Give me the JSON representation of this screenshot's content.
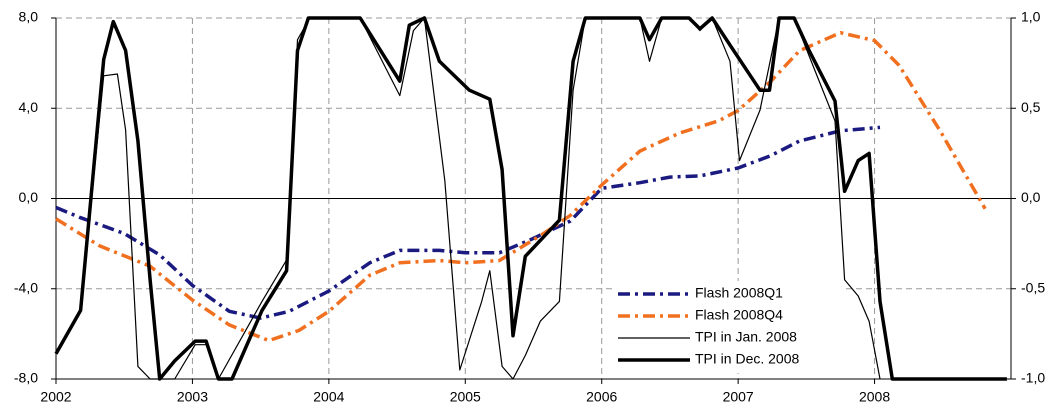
{
  "chart_data": {
    "type": "line",
    "xlim": [
      2002,
      2009
    ],
    "xticks": [
      2002,
      2003,
      2004,
      2005,
      2006,
      2007,
      2008
    ],
    "ylim": [
      -8,
      8
    ],
    "yticks": [
      {
        "value": 8,
        "label": "8,0"
      },
      {
        "value": 4,
        "label": "4,0"
      },
      {
        "value": 0,
        "label": "0,0"
      },
      {
        "value": -4,
        "label": "-4,0"
      },
      {
        "value": -8,
        "label": "-8,0"
      }
    ],
    "y2lim": [
      -1,
      1
    ],
    "y2ticks": [
      {
        "value": 1,
        "label": "1,0"
      },
      {
        "value": 0.5,
        "label": "0,5"
      },
      {
        "value": 0,
        "label": "0,0"
      },
      {
        "value": -0.5,
        "label": "-0,5"
      },
      {
        "value": -1,
        "label": "-1,0"
      }
    ],
    "grid": true,
    "legend": "lower right",
    "series": [
      {
        "name": "Flash 2008Q1",
        "color": "#1a1a80",
        "linestyle": "dashdot",
        "x": [
          2002.0,
          2002.18,
          2002.5,
          2002.76,
          2003.0,
          2003.27,
          2003.5,
          2003.71,
          2004.0,
          2004.3,
          2004.52,
          2004.81,
          2005.0,
          2005.25,
          2005.47,
          2005.77,
          2006.0,
          2006.28,
          2006.5,
          2006.72,
          2007.0,
          2007.24,
          2007.45,
          2007.75,
          2008.04
        ],
        "values": [
          -0.4,
          -0.85,
          -1.55,
          -2.5,
          -3.85,
          -5.0,
          -5.3,
          -5.0,
          -4.1,
          -2.85,
          -2.3,
          -2.3,
          -2.4,
          -2.4,
          -1.85,
          -1.0,
          0.45,
          0.7,
          0.95,
          1.0,
          1.35,
          1.9,
          2.55,
          3.0,
          3.15
        ]
      },
      {
        "name": "Flash 2008Q4",
        "color": "#f07020",
        "linestyle": "dashdot",
        "x": [
          2002.0,
          2002.32,
          2002.69,
          2003.0,
          2003.27,
          2003.56,
          2003.78,
          2004.0,
          2004.3,
          2004.52,
          2004.81,
          2005.0,
          2005.25,
          2005.55,
          2005.77,
          2006.0,
          2006.28,
          2006.57,
          2006.86,
          2007.0,
          2007.24,
          2007.45,
          2007.75,
          2008.0,
          2008.18,
          2008.48,
          2008.81
        ],
        "values": [
          -0.9,
          -2.1,
          -3.0,
          -4.5,
          -5.6,
          -6.3,
          -5.85,
          -5.0,
          -3.4,
          -2.85,
          -2.75,
          -2.85,
          -2.75,
          -1.65,
          -0.75,
          0.6,
          2.1,
          2.9,
          3.45,
          3.9,
          5.2,
          6.55,
          7.35,
          7.0,
          5.9,
          3.0,
          -0.45
        ]
      },
      {
        "name": "TPI in Jan. 2008",
        "color": "#000000",
        "linestyle": "solid",
        "axis": "y2",
        "x": [
          2002.0,
          2002.18,
          2002.35,
          2002.45,
          2002.51,
          2002.6,
          2002.69,
          2002.87,
          2003.02,
          2003.1,
          2003.19,
          2003.51,
          2003.69,
          2003.77,
          2003.86,
          2004.23,
          2004.52,
          2004.62,
          2004.7,
          2004.85,
          2004.96,
          2005.12,
          2005.18,
          2005.27,
          2005.35,
          2005.44,
          2005.55,
          2005.69,
          2005.79,
          2005.88,
          2006.28,
          2006.35,
          2006.44,
          2006.64,
          2006.72,
          2006.81,
          2006.94,
          2007.01,
          2007.16,
          2007.3,
          2007.41,
          2007.52,
          2007.71,
          2007.78,
          2007.88,
          2007.96,
          2008.04
        ],
        "values": [
          -0.86,
          -0.62,
          0.68,
          0.69,
          0.38,
          -0.93,
          -1.0,
          -1.0,
          -0.81,
          -0.81,
          -1.0,
          -0.57,
          -0.34,
          0.88,
          1.0,
          1.0,
          0.57,
          0.93,
          1.0,
          0.1,
          -0.95,
          -0.57,
          -0.4,
          -0.93,
          -1.0,
          -0.87,
          -0.68,
          -0.57,
          0.6,
          1.0,
          1.0,
          0.76,
          1.0,
          1.0,
          0.93,
          1.0,
          0.76,
          0.21,
          0.49,
          1.0,
          1.0,
          0.79,
          0.43,
          -0.45,
          -0.54,
          -0.68,
          -1.0
        ]
      },
      {
        "name": "TPI in Dec. 2008",
        "color": "#000000",
        "linestyle": "bold",
        "axis": "y2",
        "x": [
          2002.0,
          2002.18,
          2002.35,
          2002.42,
          2002.51,
          2002.6,
          2002.69,
          2002.76,
          2002.87,
          2003.02,
          2003.1,
          2003.19,
          2003.29,
          2003.51,
          2003.69,
          2003.77,
          2003.85,
          2004.23,
          2004.52,
          2004.59,
          2004.7,
          2004.81,
          2005.03,
          2005.18,
          2005.27,
          2005.35,
          2005.44,
          2005.69,
          2005.79,
          2005.88,
          2006.28,
          2006.35,
          2006.44,
          2006.64,
          2006.72,
          2006.81,
          2006.94,
          2007.16,
          2007.23,
          2007.3,
          2007.41,
          2007.52,
          2007.71,
          2007.78,
          2007.88,
          2007.96,
          2008.04,
          2008.13,
          2008.97
        ],
        "values": [
          -0.86,
          -0.62,
          0.77,
          0.98,
          0.82,
          0.32,
          -0.45,
          -1.0,
          -0.9,
          -0.79,
          -0.79,
          -1.0,
          -1.0,
          -0.62,
          -0.4,
          0.82,
          1.0,
          1.0,
          0.65,
          0.96,
          1.0,
          0.76,
          0.6,
          0.55,
          0.16,
          -0.76,
          -0.32,
          -0.12,
          0.76,
          1.0,
          1.0,
          0.88,
          1.0,
          1.0,
          0.94,
          1.0,
          0.85,
          0.6,
          0.6,
          1.0,
          1.0,
          0.82,
          0.54,
          0.04,
          0.21,
          0.25,
          -0.57,
          -1.0,
          -1.0
        ]
      }
    ]
  }
}
